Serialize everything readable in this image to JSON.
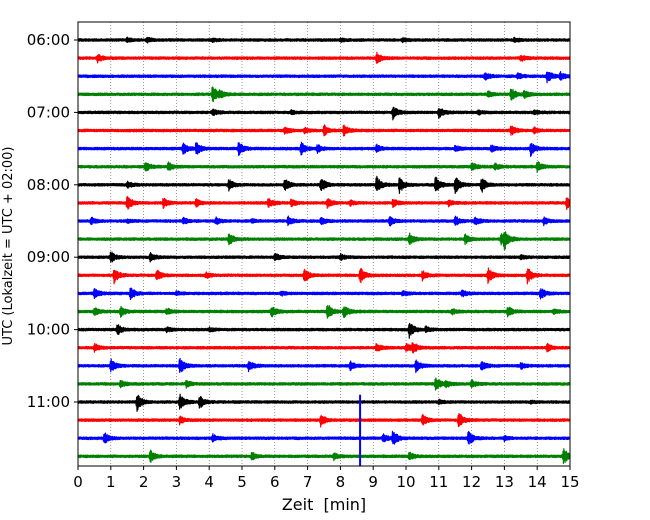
{
  "chart_data": {
    "type": "line",
    "xlabel": "Zeit  [min]",
    "ylabel": "UTC (Lokalzeit = UTC + 02:00)",
    "xlim": [
      0,
      15
    ],
    "x_ticks": [
      0,
      1,
      2,
      3,
      4,
      5,
      6,
      7,
      8,
      9,
      10,
      11,
      12,
      13,
      14,
      15
    ],
    "x_tick_labels": [
      "0",
      "1",
      "2",
      "3",
      "4",
      "5",
      "6",
      "7",
      "8",
      "9",
      "10",
      "11",
      "12",
      "13",
      "14",
      "15"
    ],
    "x_grid": true,
    "y_tick_labels": [
      "06:00",
      "07:00",
      "08:00",
      "09:00",
      "10:00",
      "11:00"
    ],
    "y_tick_trace_index": [
      0,
      4,
      8,
      12,
      16,
      20
    ],
    "trace_minutes": 15,
    "trace_colors": [
      "#000000",
      "#ff0000",
      "#0000ff",
      "#008000"
    ],
    "traces": [
      {
        "start": "06:00",
        "events": [
          [
            1.5,
            0.2
          ],
          [
            2.1,
            0.25
          ],
          [
            4.1,
            0.15
          ],
          [
            8.0,
            0.15
          ],
          [
            9.9,
            0.2
          ],
          [
            13.3,
            0.2
          ]
        ]
      },
      {
        "start": "06:15",
        "events": [
          [
            0.6,
            0.45
          ],
          [
            9.1,
            0.6
          ],
          [
            13.5,
            0.3
          ]
        ]
      },
      {
        "start": "06:30",
        "events": [
          [
            12.4,
            0.4
          ],
          [
            13.4,
            0.3
          ],
          [
            14.3,
            0.7
          ],
          [
            14.7,
            0.4
          ]
        ]
      },
      {
        "start": "06:45",
        "events": [
          [
            4.1,
            0.9
          ],
          [
            4.3,
            0.35
          ],
          [
            12.5,
            0.3
          ],
          [
            13.2,
            0.7
          ],
          [
            13.6,
            0.4
          ]
        ]
      },
      {
        "start": "07:00",
        "events": [
          [
            4.1,
            0.35
          ],
          [
            6.5,
            0.2
          ],
          [
            9.6,
            0.7
          ],
          [
            11.0,
            0.6
          ],
          [
            12.2,
            0.2
          ],
          [
            13.9,
            0.25
          ]
        ]
      },
      {
        "start": "07:15",
        "events": [
          [
            6.3,
            0.45
          ],
          [
            6.9,
            0.35
          ],
          [
            7.5,
            0.55
          ],
          [
            8.1,
            0.6
          ],
          [
            13.2,
            0.5
          ],
          [
            13.9,
            0.3
          ]
        ]
      },
      {
        "start": "07:30",
        "events": [
          [
            3.2,
            0.6
          ],
          [
            3.6,
            0.7
          ],
          [
            4.9,
            0.75
          ],
          [
            6.8,
            0.7
          ],
          [
            7.3,
            0.4
          ],
          [
            9.1,
            0.4
          ],
          [
            11.5,
            0.3
          ],
          [
            12.6,
            0.35
          ],
          [
            13.8,
            0.8
          ]
        ]
      },
      {
        "start": "07:45",
        "events": [
          [
            2.05,
            0.55
          ],
          [
            2.75,
            0.45
          ],
          [
            12.0,
            0.45
          ],
          [
            12.7,
            0.4
          ],
          [
            14.0,
            0.55
          ]
        ]
      },
      {
        "start": "08:00",
        "events": [
          [
            1.5,
            0.35
          ],
          [
            4.6,
            0.6
          ],
          [
            6.3,
            0.65
          ],
          [
            7.4,
            0.85
          ],
          [
            9.1,
            0.9
          ],
          [
            9.8,
            0.85
          ],
          [
            10.9,
            0.9
          ],
          [
            11.5,
            0.9
          ],
          [
            12.3,
            0.85
          ]
        ]
      },
      {
        "start": "08:15",
        "events": [
          [
            1.5,
            0.75
          ],
          [
            2.6,
            0.5
          ],
          [
            3.6,
            0.4
          ],
          [
            5.8,
            0.55
          ],
          [
            6.5,
            0.4
          ],
          [
            7.6,
            0.5
          ],
          [
            8.3,
            0.25
          ],
          [
            9.6,
            0.4
          ],
          [
            11.3,
            0.3
          ],
          [
            14.9,
            0.6
          ]
        ]
      },
      {
        "start": "08:30",
        "events": [
          [
            0.4,
            0.35
          ],
          [
            1.5,
            0.2
          ],
          [
            3.2,
            0.35
          ],
          [
            4.2,
            0.35
          ],
          [
            5.3,
            0.2
          ],
          [
            6.4,
            0.45
          ],
          [
            7.4,
            0.4
          ],
          [
            9.5,
            0.5
          ],
          [
            11.5,
            0.5
          ],
          [
            12.1,
            0.4
          ],
          [
            14.2,
            0.4
          ]
        ]
      },
      {
        "start": "08:45",
        "events": [
          [
            4.6,
            0.65
          ],
          [
            10.1,
            0.6
          ],
          [
            11.8,
            0.5
          ],
          [
            12.9,
            0.55
          ],
          [
            13.0,
            0.95
          ]
        ]
      },
      {
        "start": "09:00",
        "events": [
          [
            1.0,
            0.6
          ],
          [
            2.2,
            0.45
          ],
          [
            6.0,
            0.4
          ],
          [
            8.0,
            0.3
          ],
          [
            13.5,
            0.2
          ]
        ]
      },
      {
        "start": "09:15",
        "events": [
          [
            1.1,
            0.8
          ],
          [
            2.4,
            0.6
          ],
          [
            3.9,
            0.3
          ],
          [
            6.9,
            0.75
          ],
          [
            8.6,
            0.85
          ],
          [
            10.5,
            0.5
          ],
          [
            12.5,
            0.8
          ],
          [
            13.7,
            0.85
          ]
        ]
      },
      {
        "start": "09:30",
        "events": [
          [
            0.5,
            0.55
          ],
          [
            1.6,
            0.65
          ],
          [
            3.0,
            0.2
          ],
          [
            6.2,
            0.2
          ],
          [
            9.9,
            0.3
          ],
          [
            11.7,
            0.35
          ],
          [
            14.1,
            0.6
          ]
        ]
      },
      {
        "start": "09:45",
        "events": [
          [
            0.5,
            0.4
          ],
          [
            1.3,
            0.5
          ],
          [
            2.7,
            0.35
          ],
          [
            5.9,
            0.6
          ],
          [
            7.6,
            0.85
          ],
          [
            8.1,
            0.7
          ],
          [
            11.4,
            0.3
          ],
          [
            13.1,
            0.55
          ],
          [
            14.5,
            0.25
          ]
        ]
      },
      {
        "start": "10:00",
        "events": [
          [
            1.2,
            0.55
          ],
          [
            2.7,
            0.25
          ],
          [
            4.0,
            0.2
          ],
          [
            10.1,
            0.9
          ],
          [
            10.6,
            0.3
          ]
        ]
      },
      {
        "start": "10:15",
        "events": [
          [
            0.5,
            0.45
          ],
          [
            9.1,
            0.45
          ],
          [
            10.0,
            0.45
          ],
          [
            10.2,
            0.55
          ],
          [
            14.3,
            0.4
          ]
        ]
      },
      {
        "start": "10:30",
        "events": [
          [
            1.0,
            0.7
          ],
          [
            3.1,
            0.9
          ],
          [
            5.2,
            0.55
          ],
          [
            8.3,
            0.45
          ],
          [
            10.3,
            0.65
          ],
          [
            12.3,
            0.55
          ],
          [
            13.5,
            0.3
          ]
        ]
      },
      {
        "start": "10:45",
        "events": [
          [
            1.3,
            0.4
          ],
          [
            3.3,
            0.35
          ],
          [
            10.9,
            0.8
          ],
          [
            11.2,
            0.4
          ],
          [
            12.0,
            0.4
          ]
        ]
      },
      {
        "start": "11:00",
        "events": [
          [
            1.8,
            0.9
          ],
          [
            3.1,
            0.95
          ],
          [
            3.7,
            0.7
          ],
          [
            11.0,
            0.2
          ],
          [
            13.8,
            0.15
          ]
        ]
      },
      {
        "start": "11:15",
        "events": [
          [
            3.1,
            0.4
          ],
          [
            7.4,
            0.65
          ],
          [
            10.5,
            0.55
          ],
          [
            11.6,
            0.85
          ]
        ]
      },
      {
        "start": "11:30",
        "events": [
          [
            0.8,
            0.6
          ],
          [
            4.1,
            0.4
          ],
          [
            9.3,
            0.45
          ],
          [
            9.6,
            0.85
          ],
          [
            11.9,
            0.8
          ],
          [
            13.0,
            0.25
          ]
        ]
      },
      {
        "start": "11:45",
        "events": [
          [
            2.2,
            0.7
          ],
          [
            5.3,
            0.4
          ],
          [
            7.8,
            0.35
          ],
          [
            10.1,
            0.4
          ],
          [
            14.8,
            0.9
          ]
        ]
      }
    ],
    "spikes": [
      {
        "trace": 21,
        "x": 8.6,
        "reach_up": 1.4,
        "reach_down": 3.0,
        "color": "#0000ff"
      }
    ]
  }
}
